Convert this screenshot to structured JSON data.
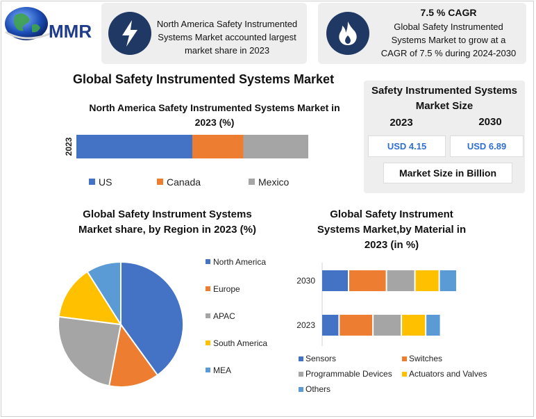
{
  "logo": {
    "text": "MMR"
  },
  "highlights": [
    {
      "icon": "lightning-icon",
      "text": [
        "North America Safety Instrumented",
        "Systems Market accounted largest",
        "market share in 2023"
      ]
    },
    {
      "icon": "flame-icon",
      "title": "7.5 % CAGR",
      "text": [
        "Global Safety Instrumented",
        "Systems Market to grow at a",
        "CAGR of 7.5 % during 2024-2030"
      ]
    }
  ],
  "main_title": "Global Safety Instrumented Systems Market",
  "market_size": {
    "title_lines": [
      "Safety Instrumented Systems",
      "Market Size"
    ],
    "year_1": "2023",
    "year_2": "2030",
    "value_1": "USD 4.15",
    "value_2": "USD 6.89",
    "unit": "Market Size in Billion"
  },
  "colors": {
    "blue": "#4472c4",
    "orange": "#ed7d31",
    "gray": "#a5a5a5",
    "yellow": "#ffc000",
    "lightblue": "#5b9bd5",
    "navy": "#1f3864"
  },
  "chart_data": [
    {
      "type": "bar",
      "orientation": "horizontal",
      "stacked": true,
      "title_lines": [
        "North America Safety Instrumented Systems Market in",
        "2023 (%)"
      ],
      "categories": [
        "2023"
      ],
      "series": [
        {
          "name": "US",
          "values": [
            50
          ],
          "color": "#4472c4"
        },
        {
          "name": "Canada",
          "values": [
            22
          ],
          "color": "#ed7d31"
        },
        {
          "name": "Mexico",
          "values": [
            28
          ],
          "color": "#a5a5a5"
        }
      ],
      "legend": "bottom"
    },
    {
      "type": "pie",
      "title_lines": [
        "Global Safety Instrument Systems",
        "Market share, by Region in 2023  (%)"
      ],
      "labels": [
        "North America",
        "Europe",
        "APAC",
        "South America",
        "MEA"
      ],
      "values": [
        40,
        13,
        24,
        14,
        9
      ],
      "colors": [
        "#4472c4",
        "#ed7d31",
        "#a5a5a5",
        "#ffc000",
        "#5b9bd5"
      ],
      "legend": "right"
    },
    {
      "type": "bar",
      "orientation": "horizontal",
      "stacked": true,
      "title_lines": [
        "Global Safety Instrument",
        "Systems Market,by Material in",
        "2023 (in %)"
      ],
      "categories": [
        "2030",
        "2023"
      ],
      "series": [
        {
          "name": "Sensors",
          "values": [
            20,
            13
          ],
          "color": "#4472c4"
        },
        {
          "name": "Switches",
          "values": [
            28,
            25
          ],
          "color": "#ed7d31"
        },
        {
          "name": "Programmable Devices",
          "values": [
            21,
            21
          ],
          "color": "#a5a5a5"
        },
        {
          "name": "Actuators and Valves",
          "values": [
            18,
            18
          ],
          "color": "#ffc000"
        },
        {
          "name": "Others",
          "values": [
            13,
            11
          ],
          "color": "#5b9bd5"
        }
      ],
      "legend": "bottom"
    }
  ]
}
